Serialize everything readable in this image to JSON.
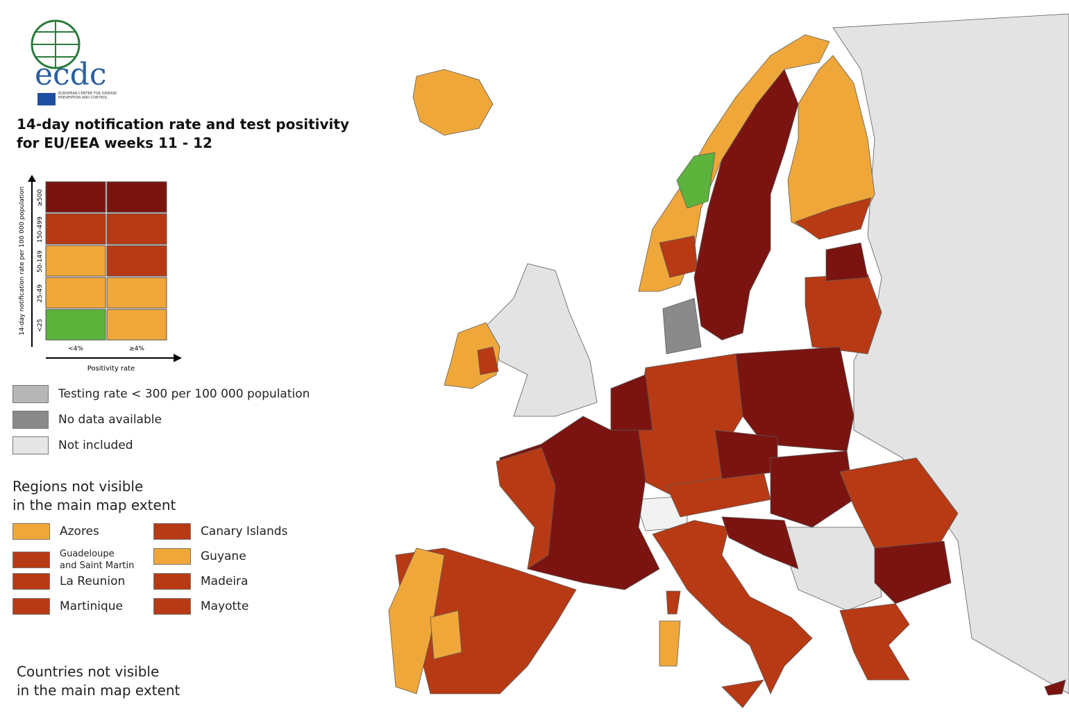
{
  "header": {
    "logo_text": "ecdc",
    "org_name": "EUROPEAN CENTRE FOR DISEASE PREVENTION AND CONTROL",
    "title_line1": "14-day notification rate and test positivity",
    "title_line2": "for EU/EEA weeks 11 - 12"
  },
  "matrix": {
    "y_label": "14-day notification rate per 100 000 population",
    "x_label": "Positivity rate",
    "rows": [
      "≥500",
      "150-499",
      "50-149",
      "25-49",
      "<25"
    ],
    "columns": [
      "<4%",
      "≥4%"
    ],
    "cells": [
      [
        "#7b1410",
        "#7b1410"
      ],
      [
        "#b83a14",
        "#b83a14"
      ],
      [
        "#f0a73a",
        "#b83a14"
      ],
      [
        "#f0a73a",
        "#f0a73a"
      ],
      [
        "#5bb33b",
        "#f0a73a"
      ]
    ]
  },
  "legend": [
    {
      "label": "Testing rate < 300 per 100 000 population",
      "color": "#b7b7b7"
    },
    {
      "label": "No data available",
      "color": "#8a8a8a"
    },
    {
      "label": "Not included",
      "color": "#e6e6e6"
    }
  ],
  "regions_not_visible": {
    "title_line1": "Regions not visible",
    "title_line2": "in the main map extent",
    "items": [
      {
        "lines": [
          "Azores"
        ],
        "color": "#f0a73a"
      },
      {
        "lines": [
          "Canary Islands"
        ],
        "color": "#b83a14"
      },
      {
        "lines": [
          "Guadeloupe",
          "and Saint Martin"
        ],
        "color": "#b83a14"
      },
      {
        "lines": [
          "Guyane"
        ],
        "color": "#f0a73a"
      },
      {
        "lines": [
          "La Reunion"
        ],
        "color": "#b83a14"
      },
      {
        "lines": [
          "Madeira"
        ],
        "color": "#b83a14"
      },
      {
        "lines": [
          "Martinique"
        ],
        "color": "#b83a14"
      },
      {
        "lines": [
          "Mayotte"
        ],
        "color": "#b83a14"
      }
    ]
  },
  "countries_not_visible": {
    "title_line1": "Countries not visible",
    "title_line2": "in the main map extent"
  }
}
